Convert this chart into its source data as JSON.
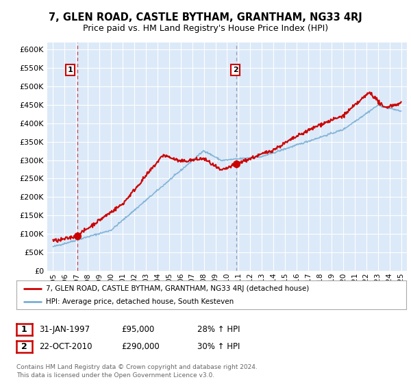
{
  "title": "7, GLEN ROAD, CASTLE BYTHAM, GRANTHAM, NG33 4RJ",
  "subtitle": "Price paid vs. HM Land Registry's House Price Index (HPI)",
  "legend_line1": "7, GLEN ROAD, CASTLE BYTHAM, GRANTHAM, NG33 4RJ (detached house)",
  "legend_line2": "HPI: Average price, detached house, South Kesteven",
  "footnote1": "Contains HM Land Registry data © Crown copyright and database right 2024.",
  "footnote2": "This data is licensed under the Open Government Licence v3.0.",
  "sale1_label": "1",
  "sale1_date": "31-JAN-1997",
  "sale1_price": "£95,000",
  "sale1_hpi": "28% ↑ HPI",
  "sale2_label": "2",
  "sale2_date": "22-OCT-2010",
  "sale2_price": "£290,000",
  "sale2_hpi": "30% ↑ HPI",
  "sale1_x": 1997.08,
  "sale1_y": 95000,
  "sale2_x": 2010.81,
  "sale2_y": 290000,
  "xlim": [
    1994.5,
    2025.5
  ],
  "ylim": [
    0,
    620000
  ],
  "yticks": [
    0,
    50000,
    100000,
    150000,
    200000,
    250000,
    300000,
    350000,
    400000,
    450000,
    500000,
    550000,
    600000
  ],
  "bg_color": "#dce9f8",
  "grid_color": "#ffffff",
  "red_line_color": "#cc0000",
  "blue_line_color": "#7aafd4",
  "sale1_vline_color": "#cc4444",
  "sale2_vline_color": "#9999bb",
  "title_fontsize": 10.5,
  "subtitle_fontsize": 9
}
